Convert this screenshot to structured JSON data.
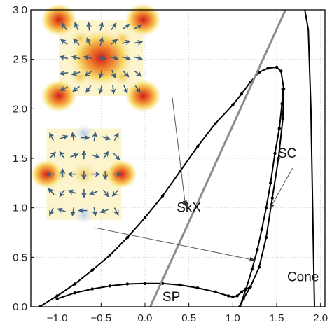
{
  "chart_data": {
    "type": "line",
    "xlim": [
      -1.3,
      2.05
    ],
    "ylim": [
      0.0,
      3.0
    ],
    "x_ticks": [
      -1.0,
      -0.5,
      0.0,
      0.5,
      1.0,
      1.5,
      2.0
    ],
    "y_ticks": [
      0.0,
      0.5,
      1.0,
      1.5,
      2.0,
      2.5,
      3.0
    ],
    "x_tick_labels": [
      "−1.0",
      "−0.5",
      "0.0",
      "0.5",
      "1.0",
      "1.5",
      "2.0"
    ],
    "y_tick_labels": [
      "0.0",
      "0.5",
      "1.0",
      "1.5",
      "2.0",
      "2.5",
      "3.0"
    ],
    "grid": true,
    "series": [
      {
        "style": "black-with-points",
        "points": [
          [
            -1.2,
            0.0
          ],
          [
            -1.0,
            0.11
          ],
          [
            -0.8,
            0.23
          ],
          [
            -0.6,
            0.37
          ],
          [
            -0.4,
            0.52
          ],
          [
            -0.2,
            0.7
          ],
          [
            0.0,
            0.9
          ],
          [
            0.2,
            1.12
          ],
          [
            0.4,
            1.37
          ],
          [
            0.6,
            1.62
          ],
          [
            0.8,
            1.85
          ],
          [
            1.0,
            2.04
          ],
          [
            1.1,
            2.15
          ],
          [
            1.2,
            2.27
          ],
          [
            1.3,
            2.37
          ],
          [
            1.4,
            2.41
          ],
          [
            1.5,
            2.42
          ],
          [
            1.55,
            2.38
          ],
          [
            1.58,
            2.2
          ],
          [
            1.57,
            1.9
          ],
          [
            1.52,
            1.5
          ],
          [
            1.45,
            1.1
          ],
          [
            1.38,
            0.7
          ],
          [
            1.3,
            0.4
          ],
          [
            1.2,
            0.2
          ],
          [
            1.12,
            0.08
          ],
          [
            1.08,
            0.0
          ]
        ]
      },
      {
        "style": "black-with-points",
        "points": [
          [
            1.08,
            0.0
          ],
          [
            1.15,
            0.18
          ],
          [
            1.22,
            0.38
          ],
          [
            1.28,
            0.58
          ],
          [
            1.33,
            0.78
          ],
          [
            1.38,
            1.0
          ],
          [
            1.43,
            1.25
          ],
          [
            1.48,
            1.55
          ],
          [
            1.53,
            1.8
          ],
          [
            1.56,
            2.05
          ],
          [
            1.57,
            2.2
          ]
        ]
      },
      {
        "style": "black-with-points",
        "points": [
          [
            -1.0,
            0.08
          ],
          [
            -0.8,
            0.14
          ],
          [
            -0.6,
            0.18
          ],
          [
            -0.4,
            0.21
          ],
          [
            -0.2,
            0.23
          ],
          [
            0.0,
            0.235
          ],
          [
            0.2,
            0.235
          ],
          [
            0.4,
            0.22
          ],
          [
            0.6,
            0.19
          ],
          [
            0.8,
            0.15
          ],
          [
            0.95,
            0.11
          ],
          [
            1.0,
            0.1
          ],
          [
            1.05,
            0.11
          ],
          [
            1.1,
            0.15
          ],
          [
            1.15,
            0.18
          ],
          [
            1.2,
            0.2
          ]
        ]
      },
      {
        "style": "black-line",
        "points": [
          [
            1.82,
            3.0
          ],
          [
            1.86,
            2.8
          ],
          [
            1.89,
            2.0
          ],
          [
            1.91,
            1.0
          ],
          [
            1.93,
            0.0
          ]
        ]
      },
      {
        "style": "gray-line",
        "points": [
          [
            0.06,
            0.0
          ],
          [
            1.6,
            3.0
          ]
        ]
      }
    ],
    "region_labels": [
      "SkX",
      "SC",
      "SP",
      "Cone"
    ],
    "annotations": [
      {
        "label": "SkX",
        "x": 0.5,
        "y": 1.0
      },
      {
        "label": "SC",
        "x": 1.62,
        "y": 1.55
      },
      {
        "label": "SP",
        "x": 0.3,
        "y": 0.1
      },
      {
        "label": "Cone",
        "x": 1.8,
        "y": 0.3
      }
    ],
    "arrows": [
      {
        "from": [
          0.31,
          2.12
        ],
        "to": [
          0.46,
          1.02
        ]
      },
      {
        "from": [
          1.68,
          1.4
        ],
        "to": [
          1.42,
          0.99
        ]
      },
      {
        "from": [
          -0.58,
          0.8
        ],
        "to": [
          1.25,
          0.47
        ]
      }
    ],
    "insets": [
      {
        "name": "skyrmion-lattice-inset",
        "x_range": [
          -0.98,
          -0.02
        ],
        "y_range": [
          2.13,
          2.9
        ]
      },
      {
        "name": "square-lattice-inset",
        "x_range": [
          -1.12,
          -0.27
        ],
        "y_range": [
          0.88,
          1.8
        ]
      }
    ]
  }
}
